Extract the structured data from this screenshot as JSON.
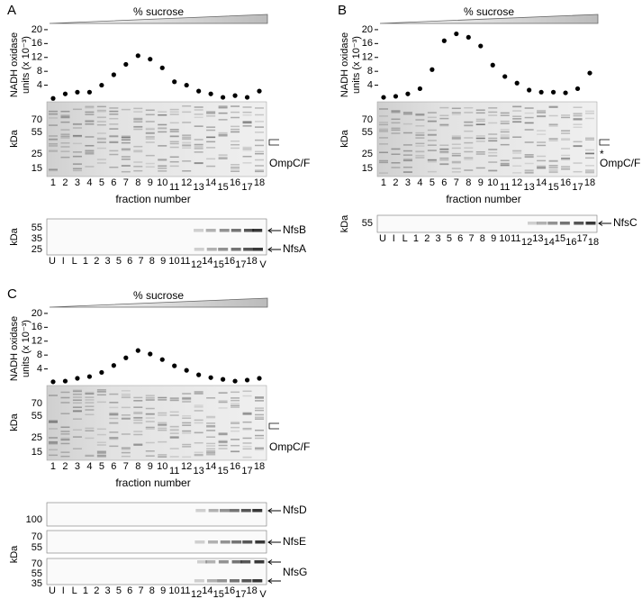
{
  "chart_data": [
    {
      "type": "scatter",
      "panel": "A",
      "gradient_label": "% sucrose",
      "ylabel": [
        "NADH oxidase",
        "units (x 10⁻³)"
      ],
      "x": [
        1,
        2,
        3,
        4,
        5,
        6,
        7,
        8,
        9,
        10,
        11,
        12,
        13,
        14,
        15,
        16,
        17,
        18
      ],
      "values": [
        0.2,
        1.5,
        2,
        2,
        4,
        7,
        10,
        12.5,
        11.5,
        9,
        5,
        4,
        2.3,
        1.5,
        0.5,
        1,
        0.5,
        2.3
      ],
      "color": "#000000",
      "xlim": [
        0.8,
        18.2
      ],
      "ylim": [
        0,
        20.5
      ],
      "yticks": [
        4,
        8,
        12,
        16,
        20
      ],
      "xlabel": "fraction number",
      "gel": {
        "ylabel": "kDa",
        "markers": [
          70,
          55,
          25,
          15
        ],
        "annotations": [
          "OmpC/F"
        ]
      },
      "blots": [
        {
          "ylabel": "kDa",
          "markers": [
            55,
            35,
            25
          ],
          "bands": [
            "NfsB",
            "NfsA"
          ],
          "lanes": [
            "U",
            "I",
            "L",
            "1",
            "2",
            "3",
            "5",
            "6",
            "7",
            "8",
            "9",
            "10",
            "11",
            "12",
            "14",
            "15",
            "16",
            "17",
            "18",
            "V"
          ]
        }
      ]
    },
    {
      "type": "scatter",
      "panel": "B",
      "gradient_label": "% sucrose",
      "ylabel": [
        "NADH oxidase",
        "units (x 10⁻³)"
      ],
      "x": [
        1,
        2,
        3,
        4,
        5,
        6,
        7,
        8,
        9,
        10,
        11,
        12,
        13,
        14,
        15,
        16,
        17,
        18
      ],
      "values": [
        0.5,
        0.8,
        1.5,
        3,
        8.5,
        16.8,
        18.8,
        17.8,
        15.3,
        9.8,
        6.5,
        4.6,
        2.6,
        2,
        2,
        1.8,
        3,
        7.5
      ],
      "color": "#000000",
      "xlim": [
        0.8,
        18.2
      ],
      "ylim": [
        0,
        20.5
      ],
      "yticks": [
        4,
        8,
        12,
        16,
        20
      ],
      "xlabel": "fraction number",
      "gel": {
        "ylabel": "kDa",
        "markers": [
          70,
          55,
          25,
          15
        ],
        "annotations": [
          "*",
          "OmpC/F"
        ]
      },
      "blots": [
        {
          "ylabel": "kDa",
          "markers": [
            55
          ],
          "bands": [
            "NfsC"
          ],
          "lanes": [
            "U",
            "I",
            "L",
            "1",
            "2",
            "3",
            "5",
            "6",
            "7",
            "8",
            "9",
            "10",
            "11",
            "12",
            "13",
            "14",
            "15",
            "16",
            "17",
            "18"
          ]
        }
      ]
    },
    {
      "type": "scatter",
      "panel": "C",
      "gradient_label": "% sucrose",
      "ylabel": [
        "NADH oxidase",
        "units (x 10⁻³)"
      ],
      "x": [
        1,
        2,
        3,
        4,
        5,
        6,
        7,
        8,
        9,
        10,
        11,
        12,
        13,
        14,
        15,
        16,
        17,
        18
      ],
      "values": [
        0.3,
        0.5,
        1.3,
        1.8,
        3,
        5,
        7.2,
        9.3,
        8.3,
        6.7,
        4.9,
        3.6,
        2.3,
        1.5,
        1,
        0.5,
        0.8,
        1.3
      ],
      "color": "#000000",
      "xlim": [
        0.8,
        18.2
      ],
      "ylim": [
        0,
        20.5
      ],
      "yticks": [
        4,
        8,
        12,
        16,
        20
      ],
      "xlabel": "fraction number",
      "gel": {
        "ylabel": "kDa",
        "markers": [
          70,
          55,
          25,
          15
        ],
        "annotations": [
          "OmpC/F"
        ]
      },
      "blots": [
        {
          "markers": [
            100
          ],
          "bands": [
            "NfsD"
          ]
        },
        {
          "ylabel": "kDa",
          "markers": [
            70,
            55
          ],
          "bands": [
            "NfsE"
          ]
        },
        {
          "markers": [
            70,
            55,
            35
          ],
          "bands": [
            "NfsG"
          ],
          "lanes": [
            "U",
            "I",
            "L",
            "1",
            "2",
            "3",
            "5",
            "6",
            "7",
            "8",
            "9",
            "10",
            "11",
            "12",
            "14",
            "15",
            "16",
            "17",
            "18",
            "V"
          ]
        }
      ]
    }
  ]
}
